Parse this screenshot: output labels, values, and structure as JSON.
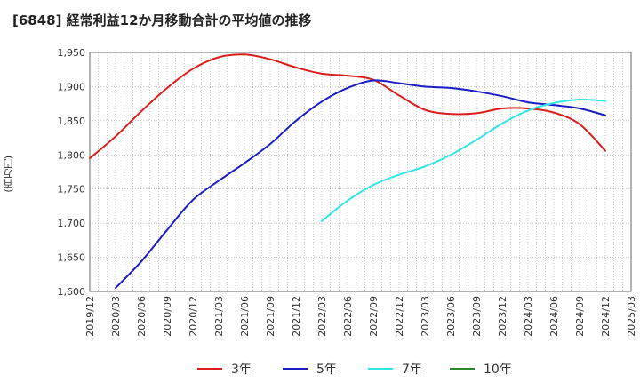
{
  "chart_data": {
    "type": "line",
    "title": "[6848]  経常利益12か月移動合計の平均値の推移",
    "ylabel": "(百万円)",
    "xlabel": "",
    "ylim": [
      1600,
      1950
    ],
    "yticks": [
      1600,
      1650,
      1700,
      1750,
      1800,
      1850,
      1900,
      1950
    ],
    "ytick_labels": [
      "1,600",
      "1,650",
      "1,700",
      "1,750",
      "1,800",
      "1,850",
      "1,900",
      "1,950"
    ],
    "xlim": [
      "2019-12",
      "2025-03"
    ],
    "xtick_labels": [
      "2019/12",
      "2020/03",
      "2020/06",
      "2020/09",
      "2020/12",
      "2021/03",
      "2021/06",
      "2021/09",
      "2021/12",
      "2022/03",
      "2022/06",
      "2022/09",
      "2022/12",
      "2023/03",
      "2023/06",
      "2023/09",
      "2023/12",
      "2024/03",
      "2024/06",
      "2024/09",
      "2024/12",
      "2025/03"
    ],
    "grid": true,
    "legend_position": "bottom",
    "series": [
      {
        "name": "3年",
        "color": "#dd1c1c",
        "points": [
          [
            "2019-12",
            1795
          ],
          [
            "2020-03",
            1827
          ],
          [
            "2020-06",
            1864
          ],
          [
            "2020-09",
            1898
          ],
          [
            "2020-12",
            1926
          ],
          [
            "2021-03",
            1943
          ],
          [
            "2021-06",
            1947
          ],
          [
            "2021-09",
            1940
          ],
          [
            "2021-12",
            1928
          ],
          [
            "2022-03",
            1919
          ],
          [
            "2022-06",
            1916
          ],
          [
            "2022-09",
            1910
          ],
          [
            "2022-12",
            1887
          ],
          [
            "2023-03",
            1866
          ],
          [
            "2023-06",
            1860
          ],
          [
            "2023-09",
            1861
          ],
          [
            "2023-12",
            1868
          ],
          [
            "2024-03",
            1868
          ],
          [
            "2024-06",
            1862
          ],
          [
            "2024-09",
            1845
          ],
          [
            "2024-12",
            1806
          ]
        ]
      },
      {
        "name": "5年",
        "color": "#1c1cc8",
        "points": [
          [
            "2020-03",
            1605
          ],
          [
            "2020-06",
            1644
          ],
          [
            "2020-09",
            1690
          ],
          [
            "2020-12",
            1734
          ],
          [
            "2021-03",
            1762
          ],
          [
            "2021-06",
            1788
          ],
          [
            "2021-09",
            1816
          ],
          [
            "2021-12",
            1850
          ],
          [
            "2022-03",
            1878
          ],
          [
            "2022-06",
            1898
          ],
          [
            "2022-09",
            1909
          ],
          [
            "2022-12",
            1905
          ],
          [
            "2023-03",
            1900
          ],
          [
            "2023-06",
            1898
          ],
          [
            "2023-09",
            1893
          ],
          [
            "2023-12",
            1886
          ],
          [
            "2024-03",
            1877
          ],
          [
            "2024-06",
            1873
          ],
          [
            "2024-09",
            1868
          ],
          [
            "2024-12",
            1858
          ]
        ]
      },
      {
        "name": "7年",
        "color": "#33e6e6",
        "points": [
          [
            "2022-03",
            1703
          ],
          [
            "2022-06",
            1733
          ],
          [
            "2022-09",
            1756
          ],
          [
            "2022-12",
            1771
          ],
          [
            "2023-03",
            1783
          ],
          [
            "2023-06",
            1800
          ],
          [
            "2023-09",
            1822
          ],
          [
            "2023-12",
            1846
          ],
          [
            "2024-03",
            1865
          ],
          [
            "2024-06",
            1876
          ],
          [
            "2024-09",
            1881
          ],
          [
            "2024-12",
            1879
          ]
        ]
      },
      {
        "name": "10年",
        "color": "#2a8a2a",
        "points": []
      }
    ]
  }
}
